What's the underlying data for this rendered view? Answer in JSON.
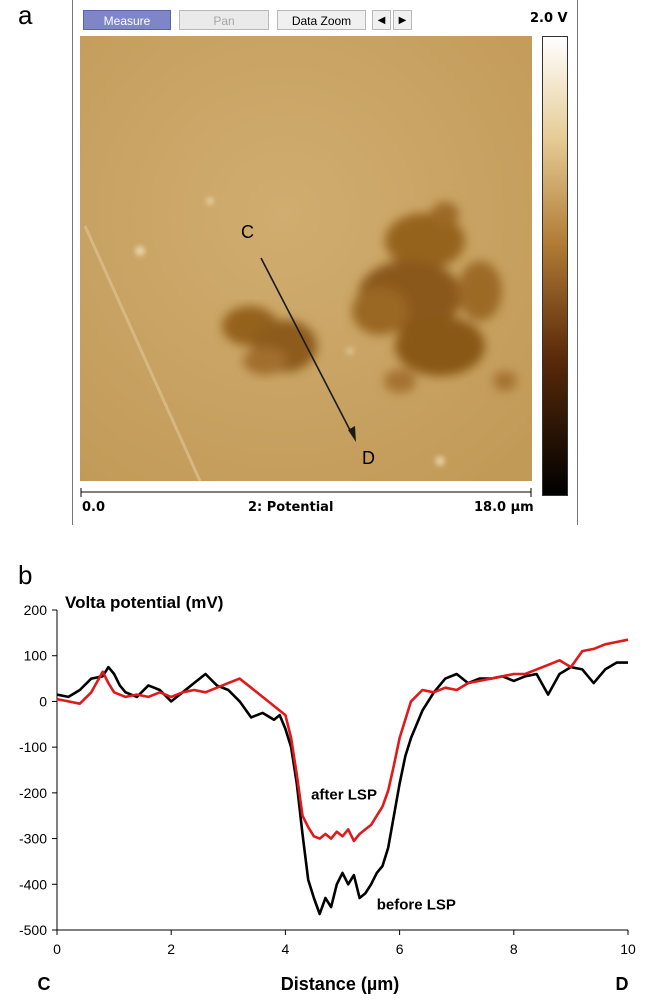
{
  "panel_a": {
    "label": "a",
    "toolbar": {
      "measure_label": "Measure",
      "pan_label": "Pan",
      "data_zoom_label": "Data Zoom",
      "prev_label": "◀",
      "next_label": "▶"
    },
    "colorbar_max": "2.0 V",
    "scale": {
      "min_label": "0.0",
      "title": "2: Potential",
      "max_label": "18.0 µm"
    },
    "markers": {
      "start": "C",
      "end": "D"
    },
    "colors": {
      "background": "#c9a363",
      "dark_region": "#8a5a1c",
      "toolbar_active": "#7f86c8"
    }
  },
  "panel_b": {
    "label": "b",
    "chart_data": {
      "type": "line",
      "title": "Volta potential (mV)",
      "xlabel": "Distance (µm)",
      "x_end_labels": [
        "C",
        "D"
      ],
      "xlim": [
        0,
        10
      ],
      "ylim": [
        -500,
        200
      ],
      "xticks": [
        "0",
        "2",
        "4",
        "6",
        "8",
        "10"
      ],
      "yticks": [
        "200",
        "100",
        "0",
        "-100",
        "-200",
        "-300",
        "-400",
        "-500"
      ],
      "grid": false,
      "series": [
        {
          "name": "before LSP",
          "color": "#000000",
          "x": [
            0,
            0.2,
            0.4,
            0.6,
            0.8,
            0.9,
            1.0,
            1.1,
            1.2,
            1.4,
            1.6,
            1.8,
            2.0,
            2.2,
            2.4,
            2.6,
            2.8,
            3.0,
            3.2,
            3.4,
            3.6,
            3.8,
            3.9,
            4.0,
            4.1,
            4.2,
            4.3,
            4.4,
            4.5,
            4.6,
            4.7,
            4.8,
            4.9,
            5.0,
            5.1,
            5.2,
            5.3,
            5.4,
            5.5,
            5.6,
            5.7,
            5.8,
            5.9,
            6.0,
            6.1,
            6.2,
            6.4,
            6.6,
            6.8,
            7.0,
            7.2,
            7.4,
            7.6,
            7.8,
            8.0,
            8.2,
            8.4,
            8.6,
            8.8,
            9.0,
            9.2,
            9.4,
            9.6,
            9.8,
            10.0
          ],
          "values": [
            15,
            10,
            25,
            50,
            55,
            75,
            60,
            35,
            20,
            10,
            35,
            25,
            0,
            20,
            40,
            60,
            35,
            25,
            0,
            -35,
            -25,
            -40,
            -30,
            -60,
            -100,
            -180,
            -290,
            -390,
            -430,
            -465,
            -430,
            -450,
            -400,
            -375,
            -400,
            -380,
            -430,
            -420,
            -400,
            -375,
            -360,
            -320,
            -250,
            -180,
            -120,
            -80,
            -20,
            20,
            50,
            60,
            40,
            50,
            50,
            55,
            45,
            55,
            60,
            15,
            60,
            75,
            70,
            40,
            70,
            85,
            85
          ]
        },
        {
          "name": "after LSP",
          "color": "#e0191b",
          "x": [
            0,
            0.2,
            0.4,
            0.6,
            0.8,
            0.9,
            1.0,
            1.2,
            1.4,
            1.6,
            1.8,
            2.0,
            2.2,
            2.4,
            2.6,
            2.8,
            3.0,
            3.2,
            3.4,
            3.6,
            3.8,
            4.0,
            4.1,
            4.2,
            4.3,
            4.4,
            4.5,
            4.6,
            4.7,
            4.8,
            4.9,
            5.0,
            5.1,
            5.2,
            5.3,
            5.4,
            5.5,
            5.6,
            5.7,
            5.8,
            5.9,
            6.0,
            6.2,
            6.4,
            6.6,
            6.8,
            7.0,
            7.2,
            7.4,
            7.6,
            7.8,
            8.0,
            8.2,
            8.4,
            8.6,
            8.8,
            9.0,
            9.2,
            9.4,
            9.6,
            9.8,
            10.0
          ],
          "values": [
            5,
            0,
            -5,
            20,
            65,
            40,
            20,
            10,
            15,
            10,
            20,
            10,
            20,
            25,
            20,
            30,
            40,
            50,
            30,
            10,
            -10,
            -30,
            -80,
            -160,
            -250,
            -275,
            -295,
            -300,
            -290,
            -300,
            -285,
            -295,
            -280,
            -305,
            -290,
            -280,
            -270,
            -250,
            -230,
            -195,
            -140,
            -80,
            0,
            25,
            20,
            30,
            25,
            40,
            45,
            50,
            55,
            60,
            60,
            70,
            80,
            90,
            75,
            110,
            115,
            125,
            130,
            135
          ]
        }
      ],
      "annotations": [
        {
          "text": "after LSP",
          "series": "after LSP"
        },
        {
          "text": "before LSP",
          "series": "before LSP"
        }
      ]
    }
  }
}
